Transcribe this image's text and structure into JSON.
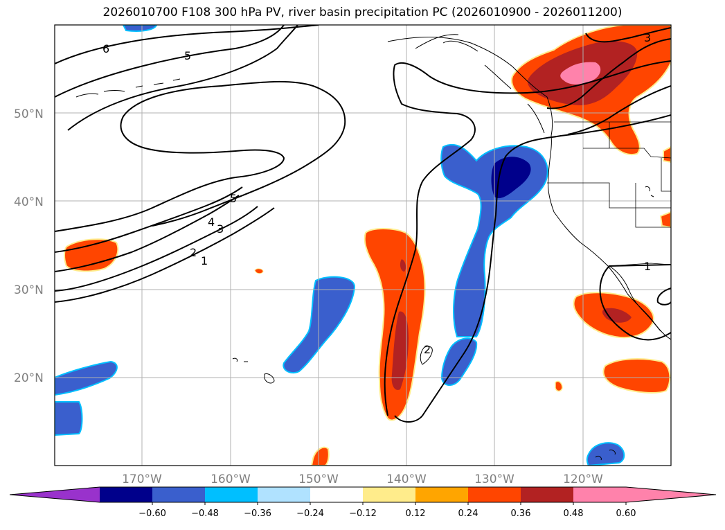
{
  "title": "2026010700 F108 300 hPa PV, river basin precipitation PC (2026010900 - 2026011200)",
  "map": {
    "lat_labels": [
      "50°N",
      "40°N",
      "30°N",
      "20°N"
    ],
    "lon_labels": [
      "170°W",
      "160°W",
      "150°W",
      "140°W",
      "130°W",
      "120°W"
    ],
    "contour_labels": [
      "6",
      "5",
      "5",
      "4",
      "3",
      "2",
      "1",
      "3",
      "1",
      "2"
    ]
  },
  "colorbar": {
    "ticks": [
      "−0.60",
      "−0.48",
      "−0.36",
      "−0.24",
      "−0.12",
      "0.12",
      "0.24",
      "0.36",
      "0.48",
      "0.60"
    ],
    "colors": {
      "under": "#9932cc",
      "bins": [
        "#00008b",
        "#3a5fcd",
        "#00bfff",
        "#b0e2ff",
        "#ffffff",
        "#ffec8b",
        "#ffa500",
        "#ff4500",
        "#b22222",
        "#ff82ab"
      ]
    }
  }
}
